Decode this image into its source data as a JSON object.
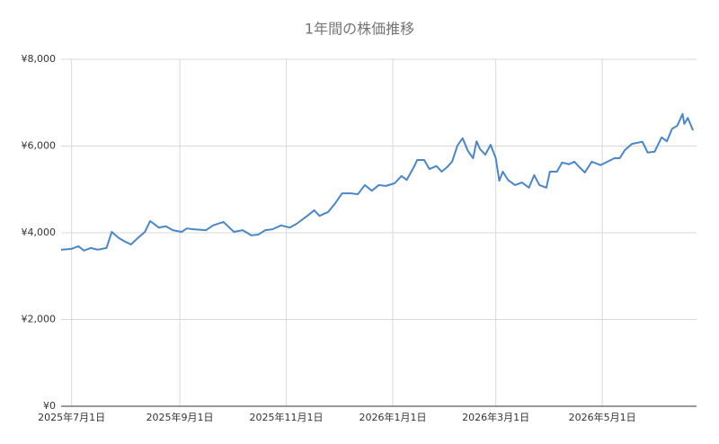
{
  "chart_data": {
    "type": "line",
    "title": "1年間の株価推移",
    "x": [
      "2025-06-25",
      "2025-07-01",
      "2025-07-05",
      "2025-07-08",
      "2025-07-12",
      "2025-07-16",
      "2025-07-21",
      "2025-07-24",
      "2025-07-28",
      "2025-07-31",
      "2025-08-04",
      "2025-08-08",
      "2025-08-12",
      "2025-08-15",
      "2025-08-20",
      "2025-08-24",
      "2025-08-28",
      "2025-09-02",
      "2025-09-05",
      "2025-09-09",
      "2025-09-16",
      "2025-09-20",
      "2025-09-26",
      "2025-10-02",
      "2025-10-07",
      "2025-10-12",
      "2025-10-16",
      "2025-10-20",
      "2025-10-24",
      "2025-10-29",
      "2025-11-03",
      "2025-11-07",
      "2025-11-13",
      "2025-11-17",
      "2025-11-20",
      "2025-11-25",
      "2025-11-29",
      "2025-12-03",
      "2025-12-08",
      "2025-12-12",
      "2025-12-16",
      "2025-12-20",
      "2025-12-24",
      "2025-12-28",
      "2026-01-02",
      "2026-01-06",
      "2026-01-09",
      "2026-01-13",
      "2026-01-15",
      "2026-01-19",
      "2026-01-22",
      "2026-01-26",
      "2026-01-29",
      "2026-02-01",
      "2026-02-04",
      "2026-02-07",
      "2026-02-10",
      "2026-02-13",
      "2026-02-16",
      "2026-02-18",
      "2026-02-20",
      "2026-02-23",
      "2026-02-26",
      "2026-03-01",
      "2026-03-03",
      "2026-03-05",
      "2026-03-08",
      "2026-03-12",
      "2026-03-16",
      "2026-03-20",
      "2026-03-23",
      "2026-03-26",
      "2026-03-30",
      "2026-04-01",
      "2026-04-05",
      "2026-04-08",
      "2026-04-12",
      "2026-04-15",
      "2026-04-18",
      "2026-04-21",
      "2026-04-25",
      "2026-04-30",
      "2026-05-04",
      "2026-05-08",
      "2026-05-11",
      "2026-05-14",
      "2026-05-18",
      "2026-05-24",
      "2026-05-27",
      "2026-05-31",
      "2026-06-04",
      "2026-06-07",
      "2026-06-10",
      "2026-06-13",
      "2026-06-16",
      "2026-06-17",
      "2026-06-19",
      "2026-06-22"
    ],
    "series": [
      {
        "color": "#4a86c8",
        "values": [
          3610,
          3630,
          3690,
          3590,
          3650,
          3610,
          3650,
          4020,
          3880,
          3810,
          3730,
          3880,
          4020,
          4270,
          4120,
          4150,
          4060,
          4020,
          4100,
          4080,
          4060,
          4170,
          4250,
          4020,
          4060,
          3940,
          3960,
          4060,
          4080,
          4170,
          4120,
          4210,
          4390,
          4520,
          4390,
          4480,
          4680,
          4910,
          4910,
          4890,
          5100,
          4970,
          5100,
          5080,
          5140,
          5310,
          5220,
          5510,
          5680,
          5680,
          5470,
          5540,
          5410,
          5510,
          5640,
          6010,
          6180,
          5890,
          5720,
          6110,
          5930,
          5800,
          6030,
          5720,
          5200,
          5410,
          5220,
          5100,
          5160,
          5040,
          5330,
          5100,
          5040,
          5410,
          5410,
          5620,
          5580,
          5640,
          5510,
          5390,
          5640,
          5560,
          5640,
          5720,
          5720,
          5910,
          6050,
          6100,
          5850,
          5870,
          6200,
          6110,
          6400,
          6470,
          6740,
          6510,
          6650,
          6360
        ]
      }
    ],
    "xlim": [
      "2025-06-25",
      "2026-06-24"
    ],
    "xticks": [
      {
        "value": "2025-07-01",
        "label": "2025年7月1日"
      },
      {
        "value": "2025-09-01",
        "label": "2025年9月1日"
      },
      {
        "value": "2025-11-01",
        "label": "2025年11月1日"
      },
      {
        "value": "2026-01-01",
        "label": "2026年1月1日"
      },
      {
        "value": "2026-03-01",
        "label": "2026年3月1日"
      },
      {
        "value": "2026-05-01",
        "label": "2026年5月1日"
      }
    ],
    "ylim": [
      0,
      8000
    ],
    "yticks": [
      {
        "value": 0,
        "label": "¥0"
      },
      {
        "value": 2000,
        "label": "¥2,000"
      },
      {
        "value": 4000,
        "label": "¥4,000"
      },
      {
        "value": 6000,
        "label": "¥6,000"
      },
      {
        "value": 8000,
        "label": "¥8,000"
      }
    ],
    "grid": true
  }
}
